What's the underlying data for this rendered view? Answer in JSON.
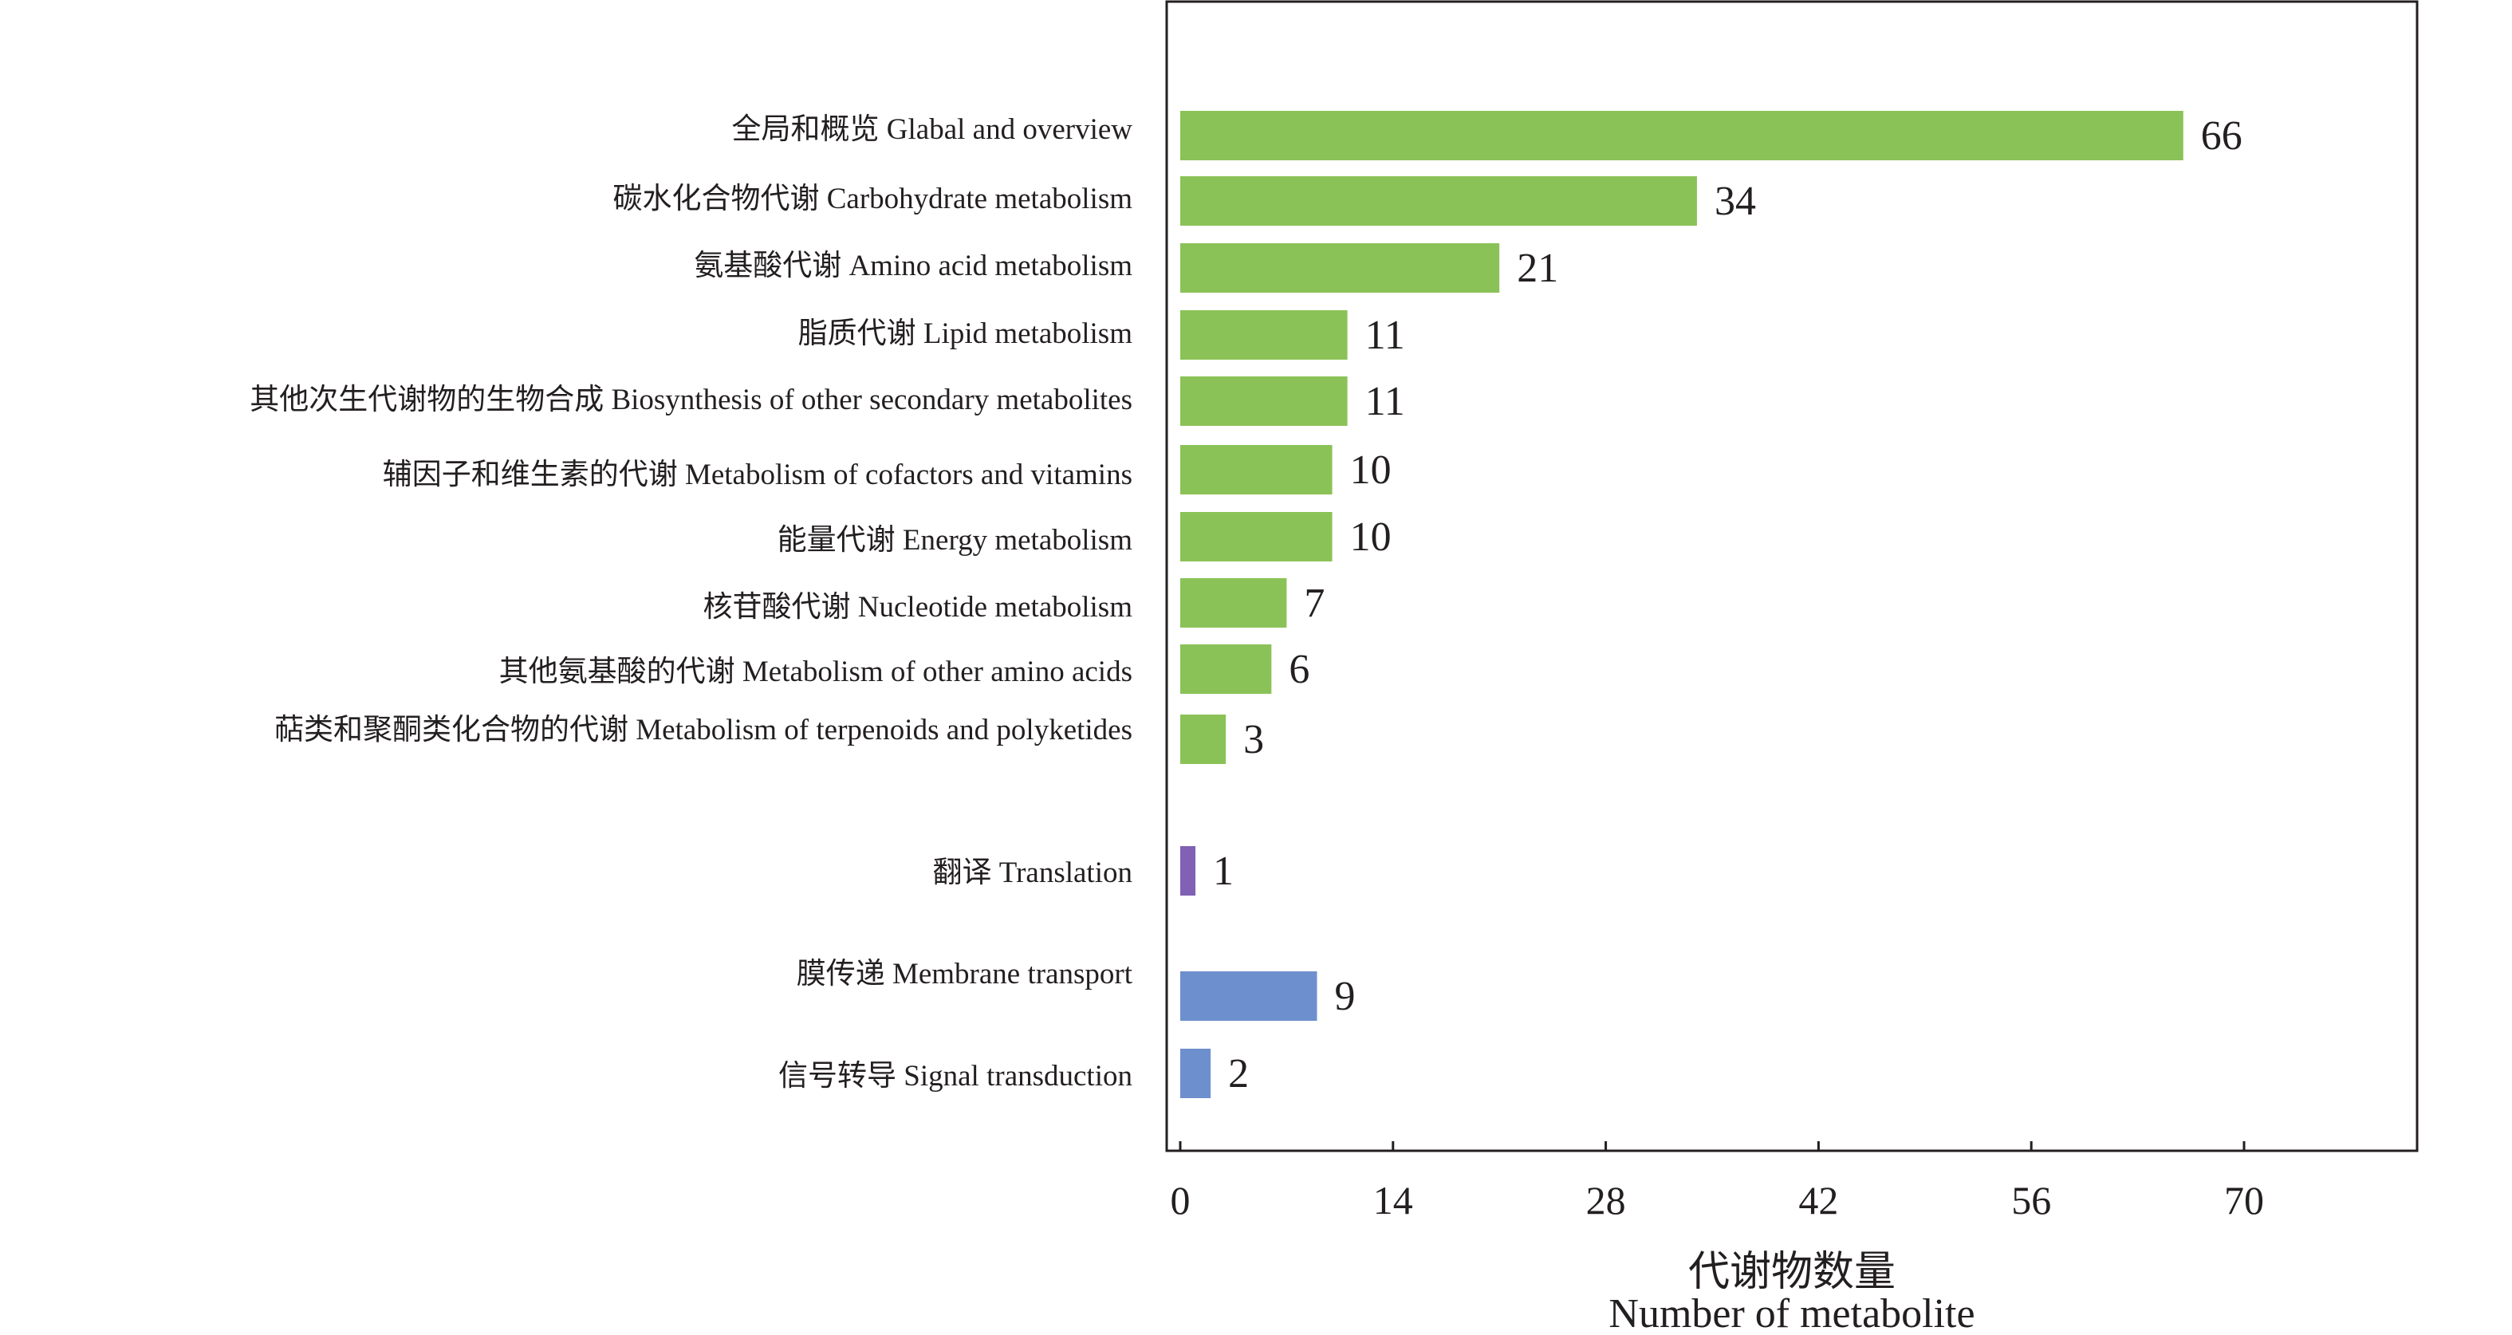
{
  "chart_data": {
    "type": "bar",
    "orientation": "horizontal",
    "categories": [
      "全局和概览 Glabal and overview",
      "碳水化合物代谢 Carbohydrate metabolism",
      "氨基酸代谢 Amino acid metabolism",
      "脂质代谢 Lipid metabolism",
      "其他次生代谢物的生物合成 Biosynthesis of other secondary metabolites",
      "辅因子和维生素的代谢 Metabolism of cofactors and vitamins",
      "能量代谢 Energy metabolism",
      "核苷酸代谢 Nucleotide metabolism",
      "其他氨基酸的代谢 Metabolism of other amino acids",
      "萜类和聚酮类化合物的代谢 Metabolism of terpenoids and polyketides",
      "翻译 Translation",
      "膜传递 Membrane transport",
      "信号转导 Signal transduction"
    ],
    "values": [
      66,
      34,
      21,
      11,
      11,
      10,
      10,
      7,
      6,
      3,
      1,
      9,
      2
    ],
    "value_labels": [
      "66",
      "34",
      "21",
      "11",
      "11",
      "10",
      "10",
      "7",
      "6",
      "3",
      "1",
      "9",
      "2"
    ],
    "groups": [
      "metabolism",
      "metabolism",
      "metabolism",
      "metabolism",
      "metabolism",
      "metabolism",
      "metabolism",
      "metabolism",
      "metabolism",
      "metabolism",
      "genetic",
      "environmental",
      "environmental"
    ],
    "group_colors": {
      "metabolism": "#8bc257",
      "genetic": "#8061b4",
      "environmental": "#6e8fce"
    },
    "xlim": [
      0,
      79
    ],
    "xticks": [
      0,
      14,
      28,
      42,
      56,
      70
    ],
    "xlabel_cn": "代谢物数量",
    "xlabel_en": "Number of metabolite",
    "grid": false
  }
}
